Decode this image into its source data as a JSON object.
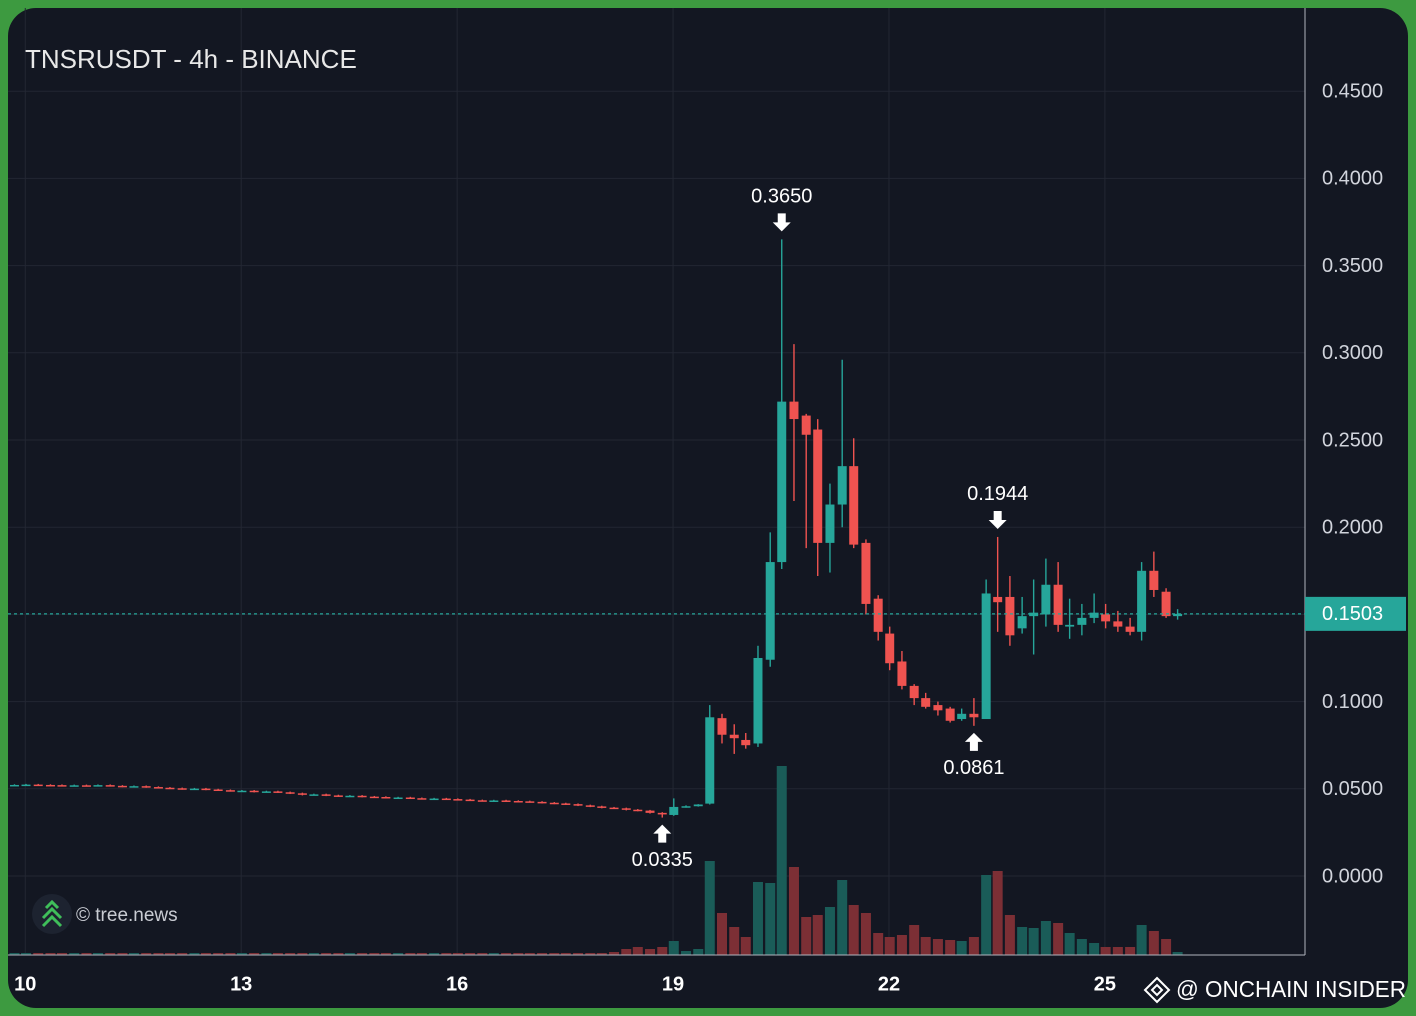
{
  "chart_data": {
    "type": "candlestick",
    "title": "TNSRUSDT - 4h - BINANCE",
    "source": "© tree.news",
    "credit": "@ ONCHAIN INSIDER",
    "x": [
      9.85,
      10.01,
      10.18,
      10.35,
      10.51,
      10.68,
      10.85,
      11.01,
      11.18,
      11.35,
      11.51,
      11.68,
      11.85,
      12.01,
      12.18,
      12.35,
      12.51,
      12.68,
      12.85,
      13.01,
      13.18,
      13.35,
      13.51,
      13.68,
      13.85,
      14.01,
      14.18,
      14.35,
      14.51,
      14.68,
      14.85,
      15.01,
      15.18,
      15.35,
      15.51,
      15.68,
      15.85,
      16.01,
      16.18,
      16.35,
      16.51,
      16.68,
      16.85,
      17.01,
      17.18,
      17.35,
      17.51,
      17.68,
      17.85,
      18.01,
      18.18,
      18.35,
      18.51,
      18.68,
      18.85,
      19.01,
      19.18,
      19.35,
      19.51,
      19.68,
      19.85,
      20.01,
      20.18,
      20.35,
      20.51,
      20.68,
      20.85,
      21.01,
      21.18,
      21.35,
      21.51,
      21.68,
      21.85,
      22.01,
      22.18,
      22.35,
      22.51,
      22.68,
      22.85,
      23.01,
      23.18,
      23.35,
      23.51,
      23.68,
      23.85,
      24.01,
      24.18,
      24.35,
      24.51,
      24.68,
      24.85,
      25.01,
      25.18,
      25.35,
      25.51,
      25.68,
      25.85,
      26.01
    ],
    "open": [
      0.052,
      0.0522,
      0.0524,
      0.0522,
      0.0521,
      0.0518,
      0.052,
      0.0519,
      0.0521,
      0.0517,
      0.0513,
      0.0515,
      0.051,
      0.0506,
      0.0503,
      0.0499,
      0.0501,
      0.0496,
      0.0492,
      0.0488,
      0.0489,
      0.0483,
      0.0485,
      0.048,
      0.0474,
      0.0466,
      0.0468,
      0.0462,
      0.0458,
      0.046,
      0.0455,
      0.0453,
      0.0449,
      0.045,
      0.0446,
      0.0443,
      0.0444,
      0.0441,
      0.0438,
      0.0434,
      0.0431,
      0.0433,
      0.043,
      0.0428,
      0.0425,
      0.042,
      0.0416,
      0.0412,
      0.0405,
      0.0399,
      0.0392,
      0.0388,
      0.038,
      0.0375,
      0.0362,
      0.035,
      0.0396,
      0.04,
      0.0415,
      0.0905,
      0.081,
      0.078,
      0.076,
      0.124,
      0.18,
      0.272,
      0.264,
      0.256,
      0.191,
      0.213,
      0.235,
      0.191,
      0.159,
      0.139,
      0.123,
      0.109,
      0.102,
      0.098,
      0.096,
      0.09,
      0.093,
      0.09,
      0.16,
      0.16,
      0.142,
      0.149,
      0.15,
      0.167,
      0.143,
      0.144,
      0.148,
      0.15,
      0.146,
      0.143,
      0.14,
      0.175,
      0.163,
      0.149
    ],
    "high": [
      0.0526,
      0.0528,
      0.0528,
      0.0526,
      0.0525,
      0.0524,
      0.0524,
      0.0525,
      0.0525,
      0.0521,
      0.0519,
      0.0519,
      0.0514,
      0.051,
      0.0507,
      0.0505,
      0.0505,
      0.05,
      0.0496,
      0.0493,
      0.0493,
      0.0489,
      0.0489,
      0.0484,
      0.0478,
      0.0472,
      0.0472,
      0.0466,
      0.0464,
      0.0464,
      0.0459,
      0.0457,
      0.0454,
      0.0454,
      0.045,
      0.0448,
      0.0448,
      0.0445,
      0.0442,
      0.0438,
      0.0437,
      0.0437,
      0.0434,
      0.0432,
      0.0429,
      0.0424,
      0.042,
      0.0416,
      0.0409,
      0.0403,
      0.0396,
      0.0392,
      0.0384,
      0.0379,
      0.0366,
      0.0445,
      0.0405,
      0.0412,
      0.098,
      0.093,
      0.087,
      0.082,
      0.132,
      0.197,
      0.365,
      0.305,
      0.265,
      0.262,
      0.225,
      0.296,
      0.251,
      0.193,
      0.161,
      0.143,
      0.129,
      0.11,
      0.105,
      0.1,
      0.097,
      0.096,
      0.102,
      0.17,
      0.1944,
      0.172,
      0.16,
      0.17,
      0.182,
      0.18,
      0.159,
      0.156,
      0.162,
      0.156,
      0.152,
      0.148,
      0.18,
      0.186,
      0.165,
      0.153
    ],
    "low": [
      0.0516,
      0.0518,
      0.0518,
      0.0517,
      0.0514,
      0.0514,
      0.0515,
      0.0515,
      0.0513,
      0.0509,
      0.0509,
      0.0506,
      0.0502,
      0.0499,
      0.0495,
      0.0495,
      0.0492,
      0.0488,
      0.0484,
      0.0484,
      0.0479,
      0.0479,
      0.0476,
      0.047,
      0.0462,
      0.0462,
      0.0458,
      0.0454,
      0.0454,
      0.0451,
      0.0449,
      0.0445,
      0.0445,
      0.0442,
      0.0439,
      0.0439,
      0.0437,
      0.0434,
      0.043,
      0.0427,
      0.0427,
      0.0426,
      0.0424,
      0.0421,
      0.0416,
      0.0412,
      0.0408,
      0.0401,
      0.0395,
      0.0388,
      0.0384,
      0.0376,
      0.0371,
      0.0358,
      0.0335,
      0.0345,
      0.0392,
      0.0398,
      0.041,
      0.076,
      0.07,
      0.073,
      0.074,
      0.12,
      0.176,
      0.215,
      0.188,
      0.172,
      0.174,
      0.2,
      0.188,
      0.15,
      0.135,
      0.118,
      0.107,
      0.098,
      0.096,
      0.092,
      0.088,
      0.089,
      0.0861,
      0.09,
      0.14,
      0.132,
      0.139,
      0.127,
      0.143,
      0.14,
      0.136,
      0.138,
      0.145,
      0.142,
      0.14,
      0.138,
      0.135,
      0.16,
      0.148,
      0.147
    ],
    "close": [
      0.0522,
      0.0524,
      0.0522,
      0.0521,
      0.0518,
      0.052,
      0.0519,
      0.0521,
      0.0517,
      0.0513,
      0.0515,
      0.051,
      0.0506,
      0.0503,
      0.0499,
      0.0501,
      0.0496,
      0.0492,
      0.0488,
      0.0489,
      0.0483,
      0.0485,
      0.048,
      0.0474,
      0.0466,
      0.0468,
      0.0462,
      0.0458,
      0.046,
      0.0455,
      0.0453,
      0.0449,
      0.045,
      0.0446,
      0.0443,
      0.0444,
      0.0441,
      0.0438,
      0.0434,
      0.0431,
      0.0433,
      0.043,
      0.0428,
      0.0425,
      0.042,
      0.0416,
      0.0412,
      0.0405,
      0.0399,
      0.0392,
      0.0388,
      0.038,
      0.0375,
      0.0362,
      0.0353,
      0.0396,
      0.04,
      0.041,
      0.091,
      0.081,
      0.079,
      0.075,
      0.125,
      0.18,
      0.272,
      0.262,
      0.253,
      0.191,
      0.213,
      0.235,
      0.19,
      0.156,
      0.14,
      0.122,
      0.109,
      0.102,
      0.097,
      0.095,
      0.089,
      0.093,
      0.091,
      0.162,
      0.157,
      0.138,
      0.149,
      0.151,
      0.167,
      0.144,
      0.144,
      0.148,
      0.151,
      0.146,
      0.143,
      0.14,
      0.175,
      0.164,
      0.149,
      0.1503
    ],
    "volume": [
      2,
      2,
      2,
      2,
      2,
      2,
      2,
      2,
      2,
      2,
      2,
      2,
      2,
      2,
      2,
      2,
      2,
      2,
      2,
      2,
      2,
      2,
      2,
      2,
      2,
      2,
      2,
      2,
      2,
      2,
      2,
      2,
      2,
      2,
      2,
      2,
      2,
      2,
      2,
      2,
      2,
      2,
      2,
      2,
      2,
      2,
      2,
      2,
      2,
      2,
      3,
      6,
      8,
      6,
      8,
      14,
      4,
      6,
      94,
      42,
      28,
      18,
      73,
      72,
      189,
      88,
      38,
      40,
      48,
      75,
      50,
      42,
      22,
      18,
      20,
      30,
      18,
      16,
      15,
      14,
      18,
      80,
      84,
      40,
      28,
      27,
      34,
      32,
      22,
      16,
      12,
      8,
      8,
      8,
      30,
      24,
      16,
      3
    ],
    "volume_lim": [
      0,
      200
    ],
    "colors": {
      "up": "#26a69a",
      "down": "#ef5350",
      "up_volume": "#1a5c58",
      "down_volume": "#7c2f35"
    },
    "xlim": [
      9.76,
      27.78
    ],
    "xticks": [
      10,
      13,
      16,
      19,
      22,
      25
    ],
    "ylim": [
      -0.0453,
      0.4977
    ],
    "yticks": [
      {
        "value": 0,
        "label": "0.0000"
      },
      {
        "value": 0.05,
        "label": "0.0500"
      },
      {
        "value": 0.1,
        "label": "0.1000"
      },
      {
        "value": 0.15,
        "label": "0.1500"
      },
      {
        "value": 0.2,
        "label": "0.2000"
      },
      {
        "value": 0.25,
        "label": "0.2500"
      },
      {
        "value": 0.3,
        "label": "0.3000"
      },
      {
        "value": 0.35,
        "label": "0.3500"
      },
      {
        "value": 0.4,
        "label": "0.4000"
      },
      {
        "value": 0.45,
        "label": "0.4500"
      }
    ],
    "yticks_hidden": [
      0.15
    ],
    "last_price": {
      "value": 0.1503,
      "label": "0.1503"
    },
    "annotations": [
      {
        "label": "0.3650",
        "value": 0.365,
        "x": 20.51,
        "position": "above"
      },
      {
        "label": "0.1944",
        "value": 0.1944,
        "x": 23.51,
        "position": "above"
      },
      {
        "label": "0.0861",
        "value": 0.0861,
        "x": 23.18,
        "position": "below"
      },
      {
        "label": "0.0335",
        "value": 0.0335,
        "x": 18.85,
        "position": "below"
      }
    ],
    "grid": true
  }
}
